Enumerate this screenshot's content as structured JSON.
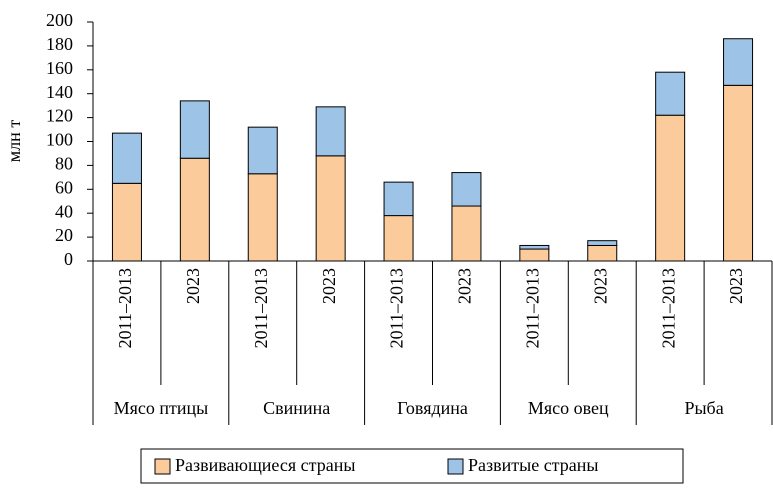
{
  "chart_data": {
    "type": "bar",
    "stacked": true,
    "ylabel": "млн т",
    "categories": [
      "2011–2013",
      "2023",
      "2011–2013",
      "2023",
      "2011–2013",
      "2023",
      "2011–2013",
      "2023",
      "2011–2013",
      "2023"
    ],
    "groups": [
      "Мясо птицы",
      "Свинина",
      "Говядина",
      "Мясо овец",
      "Рыба"
    ],
    "series": [
      {
        "name": "Развивающиеся страны",
        "color": "#fccb9b",
        "values": [
          65,
          86,
          73,
          88,
          38,
          46,
          10,
          13,
          122,
          147
        ]
      },
      {
        "name": "Развитые страны",
        "color": "#9dc3e6",
        "values": [
          42,
          48,
          39,
          41,
          28,
          28,
          3,
          4,
          36,
          39
        ]
      }
    ],
    "ylim": [
      0,
      200
    ],
    "yticks": [
      0,
      20,
      40,
      60,
      80,
      100,
      120,
      140,
      160,
      180,
      200
    ],
    "legend": "bottom"
  }
}
